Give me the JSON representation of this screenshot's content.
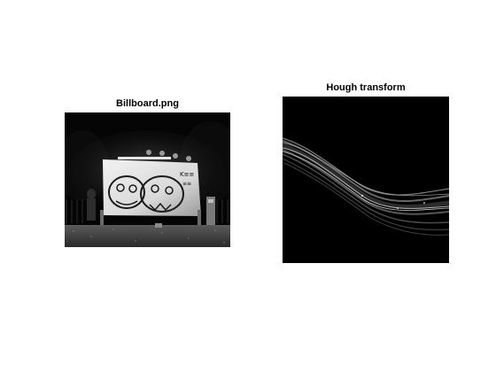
{
  "figure": {
    "background": "#ffffff",
    "left_panel": {
      "title": "Billboard.png",
      "image_kind": "grayscale-photo",
      "scene": "billboard at night with graffiti faces"
    },
    "right_panel": {
      "title": "Hough transform",
      "image_kind": "hough-accumulator",
      "colormap": "grayscale"
    }
  }
}
